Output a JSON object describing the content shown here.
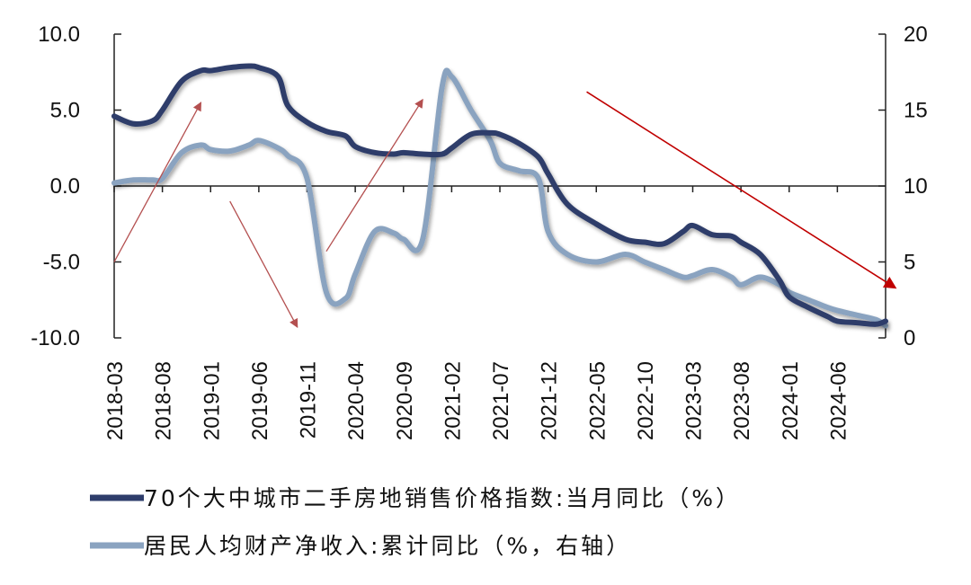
{
  "chart_data": {
    "type": "line",
    "x": [
      "2018-03",
      "2018-05",
      "2018-07",
      "2018-08",
      "2018-10",
      "2018-12",
      "2019-01",
      "2019-03",
      "2019-05",
      "2019-06",
      "2019-08",
      "2019-09",
      "2019-11",
      "2020-01",
      "2020-03",
      "2020-04",
      "2020-06",
      "2020-08",
      "2020-09",
      "2020-11",
      "2021-01",
      "2021-02",
      "2021-04",
      "2021-06",
      "2021-07",
      "2021-09",
      "2021-11",
      "2021-12",
      "2022-02",
      "2022-05",
      "2022-08",
      "2022-10",
      "2022-12",
      "2023-02",
      "2023-03",
      "2023-05",
      "2023-07",
      "2023-08",
      "2023-10",
      "2023-12",
      "2024-01",
      "2024-03",
      "2024-05",
      "2024-06",
      "2024-08",
      "2024-10",
      "2024-11"
    ],
    "x_tick_labels": [
      "2018-03",
      "2018-08",
      "2019-01",
      "2019-06",
      "2019-11",
      "2020-04",
      "2020-09",
      "2021-02",
      "2021-07",
      "2021-12",
      "2022-05",
      "2022-10",
      "2023-03",
      "2023-08",
      "2024-01",
      "2024-06"
    ],
    "series": [
      {
        "name": "70个大中城市二手房地销售价格指数:当月同比（%）",
        "axis": "left",
        "color": "#2E3D6B",
        "values": [
          4.6,
          4.1,
          4.3,
          5.0,
          6.9,
          7.6,
          7.6,
          7.8,
          7.9,
          7.8,
          7.2,
          5.3,
          4.2,
          3.6,
          3.3,
          2.6,
          2.2,
          2.1,
          2.2,
          2.1,
          2.1,
          2.5,
          3.4,
          3.5,
          3.4,
          2.8,
          1.9,
          0.8,
          -1.2,
          -2.5,
          -3.5,
          -3.7,
          -3.8,
          -3.0,
          -2.6,
          -3.2,
          -3.3,
          -3.7,
          -4.5,
          -6.2,
          -7.3,
          -8.0,
          -8.6,
          -8.9,
          -9.0,
          -9.1,
          -8.9
        ]
      },
      {
        "name": "居民人均财产净收入:累计同比（%，右轴）",
        "axis": "right",
        "color": "#8AA3C0",
        "values": [
          10.2,
          10.4,
          10.4,
          10.5,
          12.2,
          12.7,
          12.4,
          12.3,
          12.7,
          13.0,
          12.5,
          12.0,
          10.5,
          3.0,
          2.6,
          4.2,
          7.0,
          6.9,
          6.5,
          6.5,
          16.5,
          17.2,
          15.0,
          13.0,
          11.5,
          11.0,
          10.5,
          7.0,
          5.5,
          5.0,
          5.5,
          5.0,
          4.5,
          4.0,
          4.1,
          4.5,
          4.0,
          3.5,
          4.0,
          3.5,
          3.0,
          2.5,
          2.0,
          1.8,
          1.5,
          1.2,
          0.8
        ]
      }
    ],
    "y_left": {
      "lim": [
        -10,
        10
      ],
      "ticks": [
        "10.0",
        "5.0",
        "0.0",
        "-5.0",
        "-10.0"
      ]
    },
    "y_right": {
      "lim": [
        0,
        20
      ],
      "ticks": [
        "20",
        "15",
        "10",
        "5",
        "0"
      ]
    },
    "annotations": [
      {
        "type": "arrow",
        "color": "#B45050",
        "from": [
          "2018-03",
          -5.0
        ],
        "to": [
          "2018-12",
          5.5
        ]
      },
      {
        "type": "arrow",
        "color": "#B45050",
        "from": [
          "2019-03",
          -1.0
        ],
        "to": [
          "2019-10",
          -9.3
        ]
      },
      {
        "type": "arrow",
        "color": "#B45050",
        "from": [
          "2020-01",
          -4.3
        ],
        "to": [
          "2020-11",
          5.7
        ]
      },
      {
        "type": "arrow",
        "color": "#C00000",
        "from": [
          "2022-04",
          6.2
        ],
        "to": [
          "2024-12",
          -6.7
        ]
      }
    ],
    "legend": [
      {
        "label": "70个大中城市二手房地销售价格指数:当月同比（%）",
        "color": "#2E3D6B"
      },
      {
        "label": "居民人均财产净收入:累计同比（%，右轴）",
        "color": "#8AA3C0"
      }
    ],
    "legend_position": "bottom-left",
    "grid": false
  }
}
